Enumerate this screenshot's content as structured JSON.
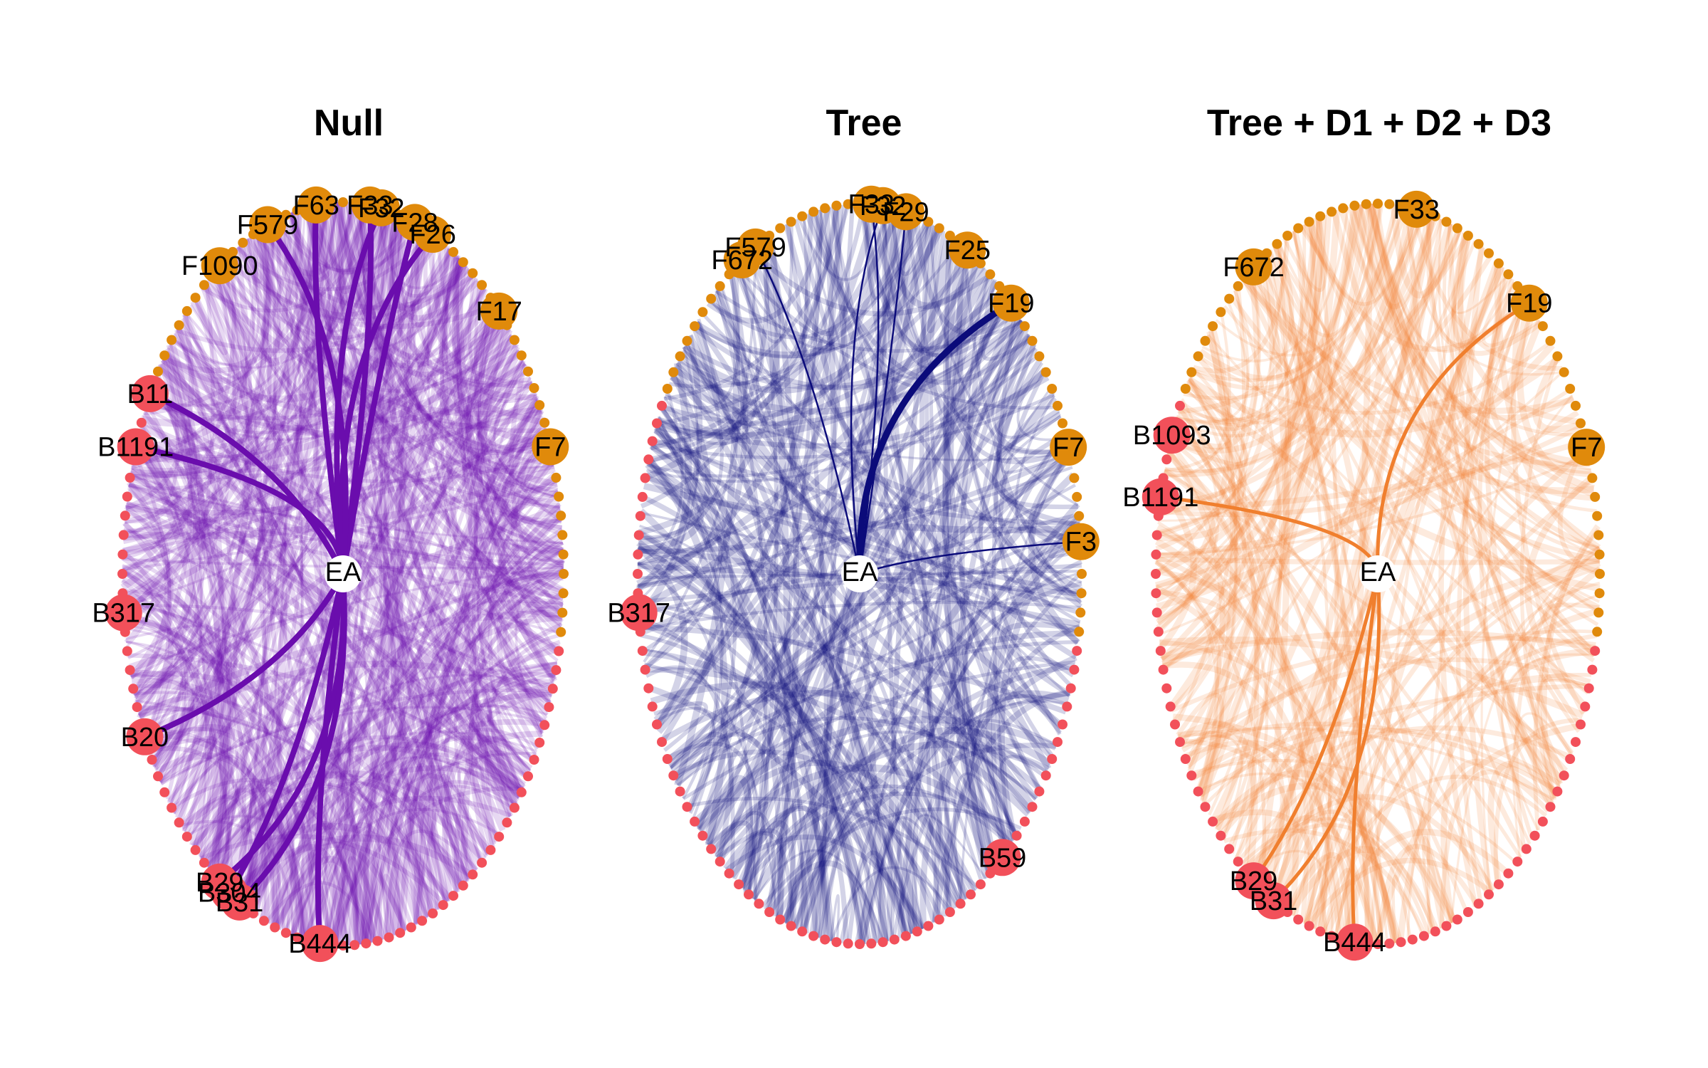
{
  "colors": {
    "f_node": "#E08A0B",
    "b_node": "#F2505A",
    "null_edge": "#6A0DAD",
    "tree_edge": "#0B0B7A",
    "full_edge": "#F07F2E"
  },
  "panels": [
    {
      "title": "Null",
      "theme": "null_edge",
      "center_label": "EA",
      "highlight": [
        {
          "label": "F63",
          "angle": 97
        },
        {
          "label": "F33",
          "angle": 83
        },
        {
          "label": "F32",
          "angle": 80
        },
        {
          "label": "F28",
          "angle": 71
        },
        {
          "label": "F26",
          "angle": 66
        },
        {
          "label": "F579",
          "angle": 110
        },
        {
          "label": "F1090",
          "angle": 124
        },
        {
          "label": "F17",
          "angle": 45
        },
        {
          "label": "F7",
          "angle": 20
        },
        {
          "label": "B11",
          "angle": 151
        },
        {
          "label": "B1191",
          "angle": 160
        },
        {
          "label": "B317",
          "angle": 186
        },
        {
          "label": "B20",
          "angle": 206
        },
        {
          "label": "B29",
          "angle": 236
        },
        {
          "label": "B304",
          "angle": 239
        },
        {
          "label": "B31",
          "angle": 242
        },
        {
          "label": "B444",
          "angle": 264
        }
      ],
      "strong_edges": [
        "F63",
        "F33",
        "F32",
        "F28",
        "F26",
        "F579",
        "B11",
        "B1191",
        "B20",
        "B29",
        "B304",
        "B31",
        "B444"
      ]
    },
    {
      "title": "Tree",
      "theme": "tree_edge",
      "center_label": "EA",
      "highlight": [
        {
          "label": "F579",
          "angle": 118
        },
        {
          "label": "F672",
          "angle": 122
        },
        {
          "label": "F33",
          "angle": 87
        },
        {
          "label": "F32",
          "angle": 84
        },
        {
          "label": "F29",
          "angle": 78
        },
        {
          "label": "F25",
          "angle": 61
        },
        {
          "label": "F19",
          "angle": 47
        },
        {
          "label": "F7",
          "angle": 20
        },
        {
          "label": "F3",
          "angle": 5
        },
        {
          "label": "B317",
          "angle": 186
        },
        {
          "label": "B59",
          "angle": 310
        }
      ],
      "strong_edges": [
        "F19",
        "F33",
        "F32",
        "F29",
        "F579",
        "F3"
      ]
    },
    {
      "title": "Tree + D1 + D2 + D3",
      "theme": "full_edge",
      "center_label": "EA",
      "highlight": [
        {
          "label": "F33",
          "angle": 80
        },
        {
          "label": "F672",
          "angle": 124
        },
        {
          "label": "F19",
          "angle": 47
        },
        {
          "label": "F7",
          "angle": 20
        },
        {
          "label": "B1093",
          "angle": 158
        },
        {
          "label": "B1191",
          "angle": 168
        },
        {
          "label": "B29",
          "angle": 236
        },
        {
          "label": "B31",
          "angle": 242
        },
        {
          "label": "B444",
          "angle": 264
        }
      ],
      "strong_edges": [
        "F19",
        "B1191",
        "B29",
        "B31",
        "B444"
      ]
    }
  ]
}
